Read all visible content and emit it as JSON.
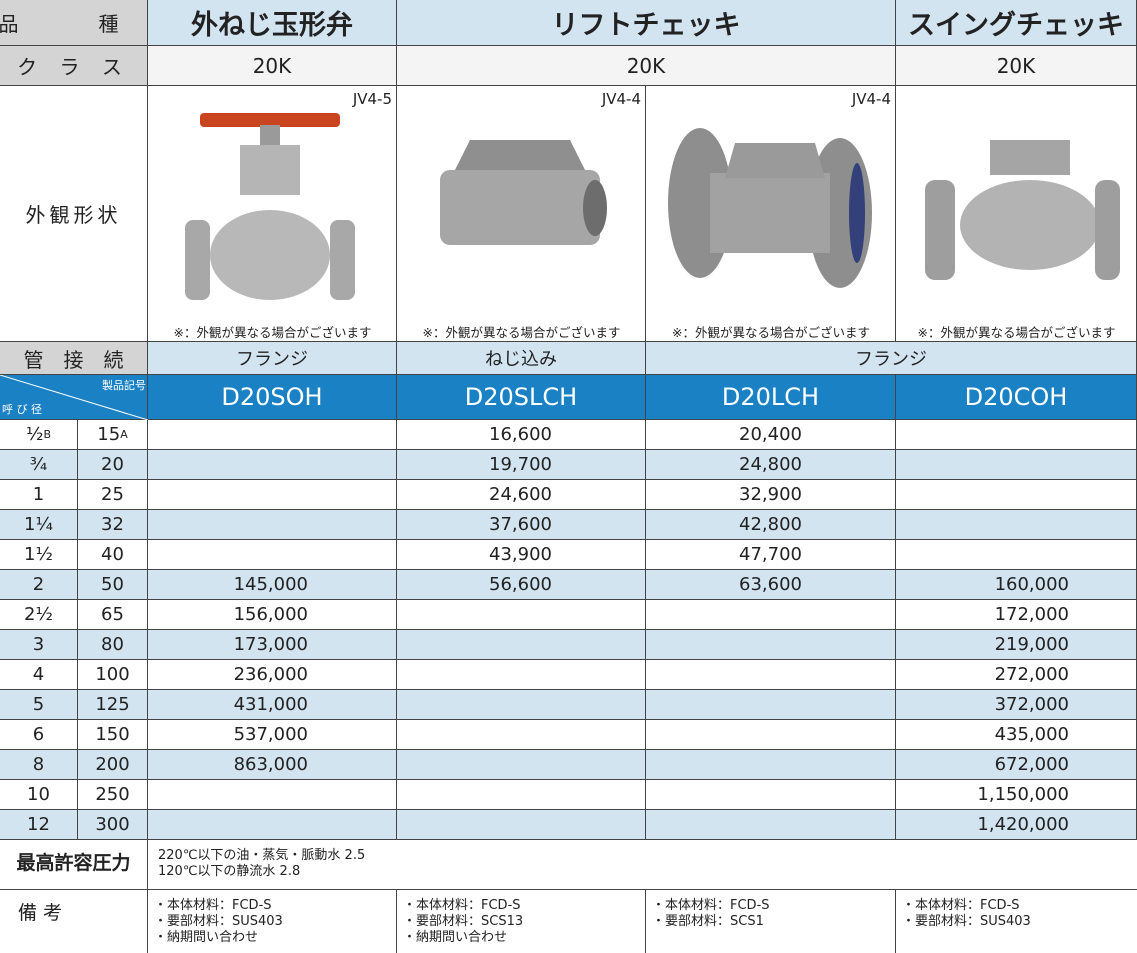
{
  "header": {
    "type_label": "品　種",
    "types": [
      "外ねじ玉形弁",
      "リフトチェッキ",
      "スイングチェッキ"
    ]
  },
  "class": {
    "label": "ク ラ ス",
    "values": [
      "20K",
      "20K",
      "20K"
    ]
  },
  "appearance": {
    "label": "外観形状",
    "codes": [
      "JV4-5",
      "JV4-4",
      "JV4-4"
    ],
    "notes": [
      "※：外観が異なる場合がございます",
      "※：外観が異なる場合がございます",
      "※：外観が異なる場合がございます",
      "※：外観が異なる場合がございます"
    ]
  },
  "connection": {
    "label": "管　接　続",
    "values": [
      "フランジ",
      "ねじ込み",
      "フランジ"
    ]
  },
  "models": {
    "product_code_label": "製品記号",
    "size_label": "呼 び 径",
    "codes": [
      "D20SOH",
      "D20SLCH",
      "D20LCH",
      "D20COH"
    ]
  },
  "table": {
    "size_b_unit": "B",
    "size_a_unit": "A",
    "rows": [
      [
        "½",
        "15",
        null,
        "16,600",
        "20,400",
        null
      ],
      [
        "¾",
        "20",
        null,
        "19,700",
        "24,800",
        null
      ],
      [
        "1",
        "25",
        null,
        "24,600",
        "32,900",
        null
      ],
      [
        "1¼",
        "32",
        null,
        "37,600",
        "42,800",
        null
      ],
      [
        "1½",
        "40",
        null,
        "43,900",
        "47,700",
        null
      ],
      [
        "2",
        "50",
        "145,000",
        "56,600",
        "63,600",
        "160,000"
      ],
      [
        "2½",
        "65",
        "156,000",
        null,
        null,
        "172,000"
      ],
      [
        "3",
        "80",
        "173,000",
        null,
        null,
        "219,000"
      ],
      [
        "4",
        "100",
        "236,000",
        null,
        null,
        "272,000"
      ],
      [
        "5",
        "125",
        "431,000",
        null,
        null,
        "372,000"
      ],
      [
        "6",
        "150",
        "537,000",
        null,
        null,
        "435,000"
      ],
      [
        "8",
        "200",
        "863,000",
        null,
        null,
        "672,000"
      ],
      [
        "10",
        "250",
        null,
        null,
        null,
        "1,150,000"
      ],
      [
        "12",
        "300",
        null,
        null,
        null,
        "1,420,000"
      ]
    ]
  },
  "pressure": {
    "label": "最高許容圧力",
    "lines": [
      "220℃以下の油・蒸気・脈動水 2.5",
      "120℃以下の静流水 2.8"
    ]
  },
  "remarks": {
    "label": "備 考",
    "columns": [
      [
        "・本体材料：FCD-S",
        "・要部材料：SUS403",
        "・納期問い合わせ"
      ],
      [
        "・本体材料：FCD-S",
        "・要部材料：SCS13",
        "・納期問い合わせ"
      ],
      [
        "・本体材料：FCD-S",
        "・要部材料：SCS1"
      ],
      [
        "・本体材料：FCD-S",
        "・要部材料：SUS403"
      ]
    ]
  }
}
